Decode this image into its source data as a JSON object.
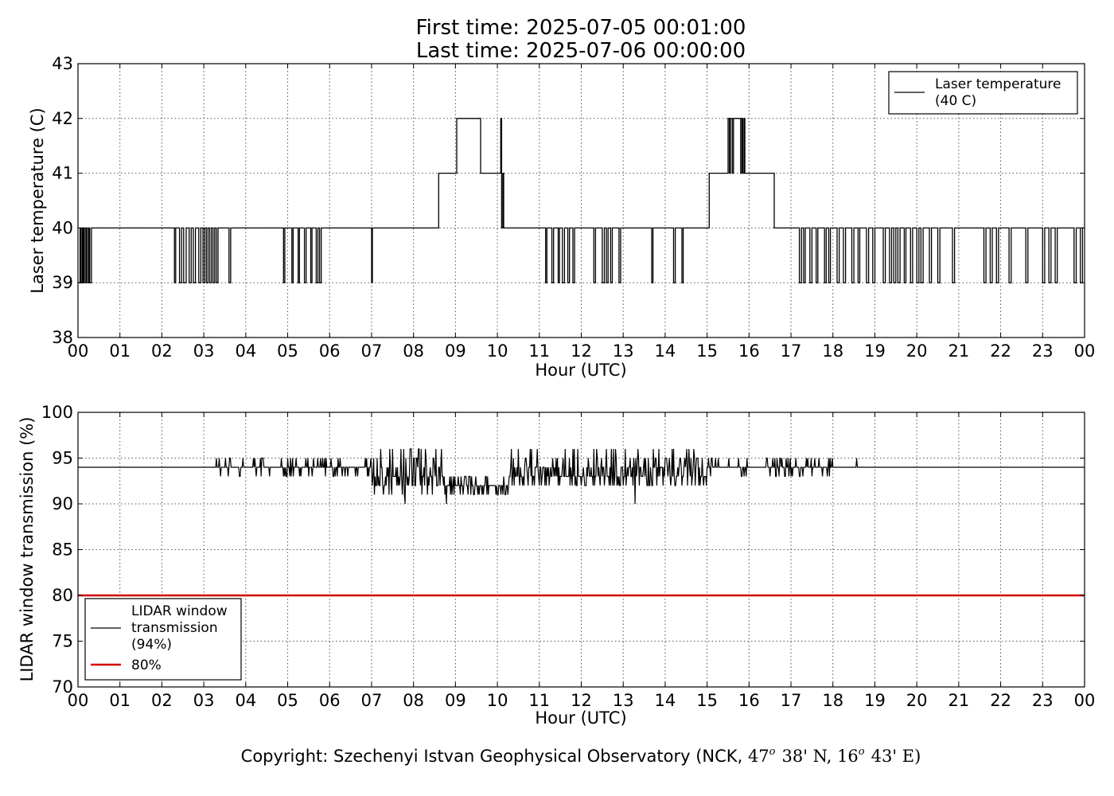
{
  "title": {
    "line1": "First time: 2025-07-05 00:01:00",
    "line2": "Last time: 2025-07-06 00:00:00"
  },
  "footer": {
    "text_a": "Copyright: Szechenyi Istvan Geophysical Observatory (NCK, ",
    "lat_deg": "47",
    "lat_min": "38' N, ",
    "lon_deg": "16",
    "lon_min": "43' E)",
    "degree_sup": "o"
  },
  "chart_data": [
    {
      "type": "line",
      "xlabel": "Hour (UTC)",
      "ylabel": "Laser temperature (C)",
      "xlim": [
        0,
        24
      ],
      "ylim": [
        38,
        43
      ],
      "xticks": [
        "00",
        "01",
        "02",
        "03",
        "04",
        "05",
        "06",
        "07",
        "08",
        "09",
        "10",
        "11",
        "12",
        "13",
        "14",
        "15",
        "16",
        "17",
        "18",
        "19",
        "20",
        "21",
        "22",
        "23",
        "00"
      ],
      "yticks": [
        38,
        39,
        40,
        41,
        42,
        43
      ],
      "grid": true,
      "legend_position": "top-right",
      "series": [
        {
          "name": "Laser temperature\n(40 C)",
          "color": "#000000",
          "baseline": 40,
          "steps": [
            [
              0.0,
              39
            ],
            [
              0.05,
              40
            ],
            [
              0.07,
              39
            ],
            [
              0.1,
              40
            ],
            [
              0.12,
              39
            ],
            [
              0.14,
              40
            ],
            [
              0.17,
              39
            ],
            [
              0.2,
              40
            ],
            [
              0.23,
              39
            ],
            [
              0.26,
              40
            ],
            [
              0.28,
              39
            ],
            [
              0.32,
              40
            ],
            [
              2.3,
              39
            ],
            [
              2.33,
              40
            ],
            [
              2.42,
              39
            ],
            [
              2.47,
              40
            ],
            [
              2.52,
              39
            ],
            [
              2.58,
              40
            ],
            [
              2.65,
              39
            ],
            [
              2.7,
              40
            ],
            [
              2.75,
              39
            ],
            [
              2.8,
              40
            ],
            [
              2.88,
              39
            ],
            [
              2.93,
              40
            ],
            [
              2.98,
              39
            ],
            [
              3.02,
              40
            ],
            [
              3.06,
              39
            ],
            [
              3.1,
              40
            ],
            [
              3.14,
              39
            ],
            [
              3.18,
              40
            ],
            [
              3.22,
              39
            ],
            [
              3.26,
              40
            ],
            [
              3.3,
              39
            ],
            [
              3.34,
              40
            ],
            [
              3.6,
              39
            ],
            [
              3.64,
              40
            ],
            [
              4.9,
              39
            ],
            [
              4.93,
              40
            ],
            [
              5.1,
              39
            ],
            [
              5.13,
              40
            ],
            [
              5.25,
              39
            ],
            [
              5.28,
              40
            ],
            [
              5.4,
              39
            ],
            [
              5.44,
              40
            ],
            [
              5.55,
              39
            ],
            [
              5.58,
              40
            ],
            [
              5.68,
              39
            ],
            [
              5.72,
              40
            ],
            [
              5.76,
              39
            ],
            [
              5.8,
              40
            ],
            [
              7.0,
              39
            ],
            [
              7.02,
              40
            ],
            [
              8.6,
              41
            ],
            [
              9.03,
              42
            ],
            [
              9.6,
              41
            ],
            [
              10.08,
              42
            ],
            [
              10.1,
              40
            ],
            [
              10.13,
              41
            ],
            [
              10.15,
              40
            ],
            [
              11.15,
              39
            ],
            [
              11.18,
              40
            ],
            [
              11.3,
              39
            ],
            [
              11.34,
              40
            ],
            [
              11.45,
              39
            ],
            [
              11.48,
              40
            ],
            [
              11.55,
              39
            ],
            [
              11.6,
              40
            ],
            [
              11.68,
              39
            ],
            [
              11.72,
              40
            ],
            [
              11.8,
              39
            ],
            [
              11.84,
              40
            ],
            [
              12.3,
              39
            ],
            [
              12.34,
              40
            ],
            [
              12.5,
              39
            ],
            [
              12.55,
              40
            ],
            [
              12.6,
              39
            ],
            [
              12.64,
              40
            ],
            [
              12.7,
              39
            ],
            [
              12.74,
              40
            ],
            [
              12.9,
              39
            ],
            [
              12.94,
              40
            ],
            [
              13.68,
              39
            ],
            [
              13.71,
              40
            ],
            [
              14.2,
              39
            ],
            [
              14.24,
              40
            ],
            [
              14.4,
              39
            ],
            [
              14.43,
              40
            ],
            [
              15.05,
              41
            ],
            [
              15.5,
              42
            ],
            [
              15.53,
              41
            ],
            [
              15.56,
              42
            ],
            [
              15.6,
              41
            ],
            [
              15.63,
              42
            ],
            [
              15.8,
              41
            ],
            [
              15.83,
              42
            ],
            [
              15.85,
              41
            ],
            [
              15.88,
              42
            ],
            [
              15.9,
              41
            ],
            [
              16.6,
              40
            ],
            [
              17.2,
              39
            ],
            [
              17.25,
              40
            ],
            [
              17.3,
              39
            ],
            [
              17.34,
              40
            ],
            [
              17.45,
              39
            ],
            [
              17.5,
              40
            ],
            [
              17.6,
              39
            ],
            [
              17.64,
              40
            ],
            [
              17.8,
              39
            ],
            [
              17.84,
              40
            ],
            [
              17.9,
              39
            ],
            [
              17.94,
              40
            ],
            [
              18.1,
              39
            ],
            [
              18.15,
              40
            ],
            [
              18.25,
              39
            ],
            [
              18.3,
              40
            ],
            [
              18.45,
              39
            ],
            [
              18.5,
              40
            ],
            [
              18.6,
              39
            ],
            [
              18.64,
              40
            ],
            [
              18.8,
              39
            ],
            [
              18.85,
              40
            ],
            [
              18.95,
              39
            ],
            [
              19.0,
              40
            ],
            [
              19.2,
              39
            ],
            [
              19.25,
              40
            ],
            [
              19.35,
              39
            ],
            [
              19.4,
              40
            ],
            [
              19.45,
              39
            ],
            [
              19.5,
              40
            ],
            [
              19.55,
              39
            ],
            [
              19.6,
              40
            ],
            [
              19.7,
              39
            ],
            [
              19.74,
              40
            ],
            [
              19.85,
              39
            ],
            [
              19.9,
              40
            ],
            [
              20.0,
              39
            ],
            [
              20.05,
              40
            ],
            [
              20.1,
              39
            ],
            [
              20.15,
              40
            ],
            [
              20.3,
              39
            ],
            [
              20.35,
              40
            ],
            [
              20.5,
              39
            ],
            [
              20.55,
              40
            ],
            [
              20.85,
              39
            ],
            [
              20.9,
              40
            ],
            [
              21.6,
              39
            ],
            [
              21.65,
              40
            ],
            [
              21.75,
              39
            ],
            [
              21.8,
              40
            ],
            [
              21.9,
              39
            ],
            [
              21.95,
              40
            ],
            [
              22.2,
              39
            ],
            [
              22.25,
              40
            ],
            [
              22.6,
              39
            ],
            [
              22.65,
              40
            ],
            [
              23.0,
              39
            ],
            [
              23.05,
              40
            ],
            [
              23.15,
              39
            ],
            [
              23.2,
              40
            ],
            [
              23.3,
              39
            ],
            [
              23.35,
              40
            ],
            [
              23.75,
              39
            ],
            [
              23.8,
              40
            ],
            [
              23.9,
              39
            ],
            [
              23.95,
              40
            ]
          ]
        }
      ]
    },
    {
      "type": "line",
      "xlabel": "Hour (UTC)",
      "ylabel": "LIDAR window transmission (%)",
      "xlim": [
        0,
        24
      ],
      "ylim": [
        70,
        100
      ],
      "xticks": [
        "00",
        "01",
        "02",
        "03",
        "04",
        "05",
        "06",
        "07",
        "08",
        "09",
        "10",
        "11",
        "12",
        "13",
        "14",
        "15",
        "16",
        "17",
        "18",
        "19",
        "20",
        "21",
        "22",
        "23",
        "00"
      ],
      "yticks": [
        70,
        75,
        80,
        85,
        90,
        95,
        100
      ],
      "grid": true,
      "legend_position": "bottom-left",
      "series": [
        {
          "name": "LIDAR window\ntransmission\n(94%)",
          "color": "#000000",
          "baseline": 94,
          "noisy_segments": [
            {
              "x": [
                3.2,
                7.0
              ],
              "low": 93,
              "high": 95,
              "spread": 1
            },
            {
              "x": [
                7.0,
                8.7
              ],
              "low": 90,
              "high": 96,
              "spread": 3
            },
            {
              "x": [
                8.7,
                10.3
              ],
              "low": 91,
              "high": 94,
              "spread": 1.5
            },
            {
              "x": [
                10.3,
                15.0
              ],
              "low": 92,
              "high": 96,
              "spread": 2
            },
            {
              "x": [
                15.0,
                16.0
              ],
              "low": 93,
              "high": 96,
              "spread": 1
            },
            {
              "x": [
                16.4,
                18.0
              ],
              "low": 93,
              "high": 95,
              "spread": 1
            },
            {
              "x": [
                18.45,
                18.6
              ],
              "low": 94,
              "high": 95,
              "spread": 1
            }
          ],
          "min_point": [
            13.28,
            90
          ],
          "min_point_b": [
            7.8,
            90
          ],
          "min_point_c": [
            8.78,
            90
          ]
        },
        {
          "name": "80%",
          "color": "#d40000",
          "constant": 80
        }
      ]
    }
  ]
}
